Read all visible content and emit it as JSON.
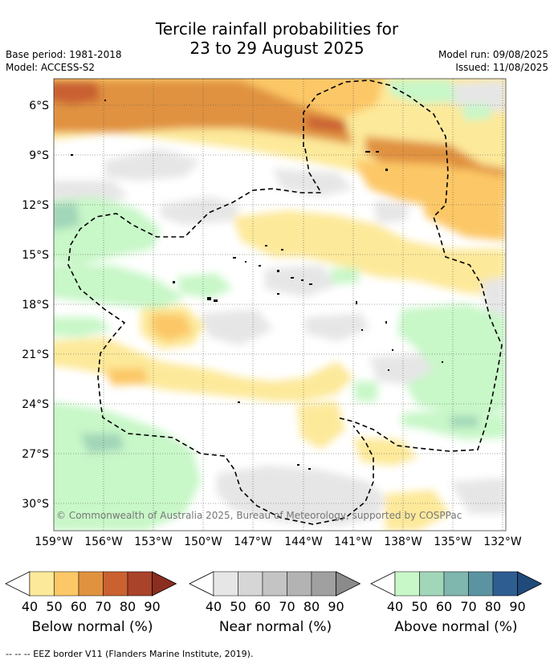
{
  "header": {
    "title_line1": "Tercile rainfall probabilities for",
    "title_line2": "23 to 29 August 2025",
    "base_period": "Base period: 1981-2018",
    "model": "Model: ACCESS-S2",
    "model_run": "Model run: 09/08/2025",
    "issued": "Issued: 11/08/2025"
  },
  "map": {
    "lat_labels": [
      "6°S",
      "9°S",
      "12°S",
      "15°S",
      "18°S",
      "21°S",
      "24°S",
      "27°S",
      "30°S"
    ],
    "lon_labels": [
      "159°W",
      "156°W",
      "153°W",
      "150°W",
      "147°W",
      "144°W",
      "141°W",
      "138°W",
      "135°W",
      "132°W"
    ],
    "copyright": "© Commonwealth of Australia 2025, Bureau of Meteorology, supported by COSPPac"
  },
  "colorbars": [
    {
      "name": "below",
      "label": "Below normal (%)",
      "ticks": [
        "40",
        "50",
        "60",
        "70",
        "80",
        "90"
      ],
      "colors": [
        "#ffffff",
        "#fde99a",
        "#fcc766",
        "#e0923f",
        "#c96131",
        "#a9432a",
        "#8a2e20"
      ]
    },
    {
      "name": "near",
      "label": "Near normal (%)",
      "ticks": [
        "40",
        "50",
        "60",
        "70",
        "80",
        "90"
      ],
      "colors": [
        "#ffffff",
        "#e6e6e6",
        "#d6d6d6",
        "#c4c4c4",
        "#b3b3b3",
        "#a0a0a0",
        "#8b8b8b"
      ]
    },
    {
      "name": "above",
      "label": "Above normal (%)",
      "ticks": [
        "40",
        "50",
        "60",
        "70",
        "80",
        "90"
      ],
      "colors": [
        "#ffffff",
        "#c8f7c8",
        "#a2d6b8",
        "#7fb6ae",
        "#5b93a1",
        "#2e5d91",
        "#1f4a7a"
      ]
    }
  ],
  "footnote": "-- -- -- EEZ border V11 (Flanders Marine Institute, 2019)."
}
